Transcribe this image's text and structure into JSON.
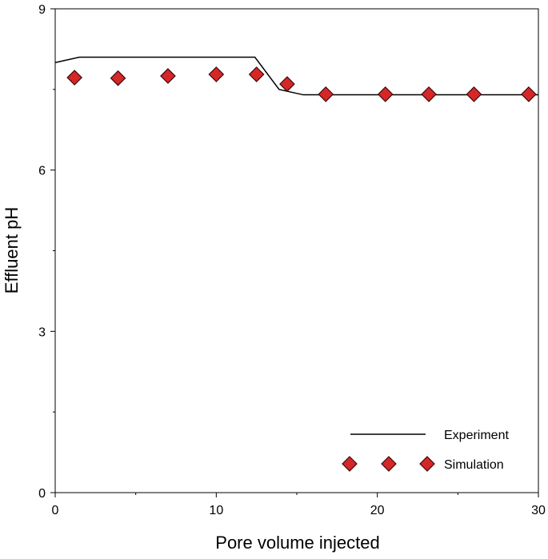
{
  "chart_data": {
    "type": "line",
    "xlabel": "Pore volume injected",
    "ylabel": "Effluent pH",
    "xlim": [
      0,
      30
    ],
    "xticks": [
      0,
      10,
      20,
      30
    ],
    "xminorticks": [
      5,
      15,
      25
    ],
    "ylim": [
      0,
      9
    ],
    "yticks": [
      0,
      3,
      6,
      9
    ],
    "yminorticks": [
      1.5,
      4.5,
      7.5
    ],
    "legend": "lower right",
    "series": [
      {
        "name": "Experiment",
        "kind": "line",
        "color": "#000000",
        "x": [
          0,
          1.5,
          12.4,
          13.9,
          15.4,
          30
        ],
        "values": [
          8.0,
          8.1,
          8.1,
          7.5,
          7.4,
          7.4
        ]
      },
      {
        "name": "Simulation",
        "kind": "scatter",
        "color": "#d62728",
        "x": [
          1.2,
          3.9,
          7.0,
          10.0,
          12.5,
          14.4,
          16.8,
          20.5,
          23.2,
          26.0,
          29.4
        ],
        "values": [
          7.72,
          7.71,
          7.75,
          7.78,
          7.78,
          7.6,
          7.41,
          7.41,
          7.41,
          7.41,
          7.41
        ]
      }
    ]
  }
}
